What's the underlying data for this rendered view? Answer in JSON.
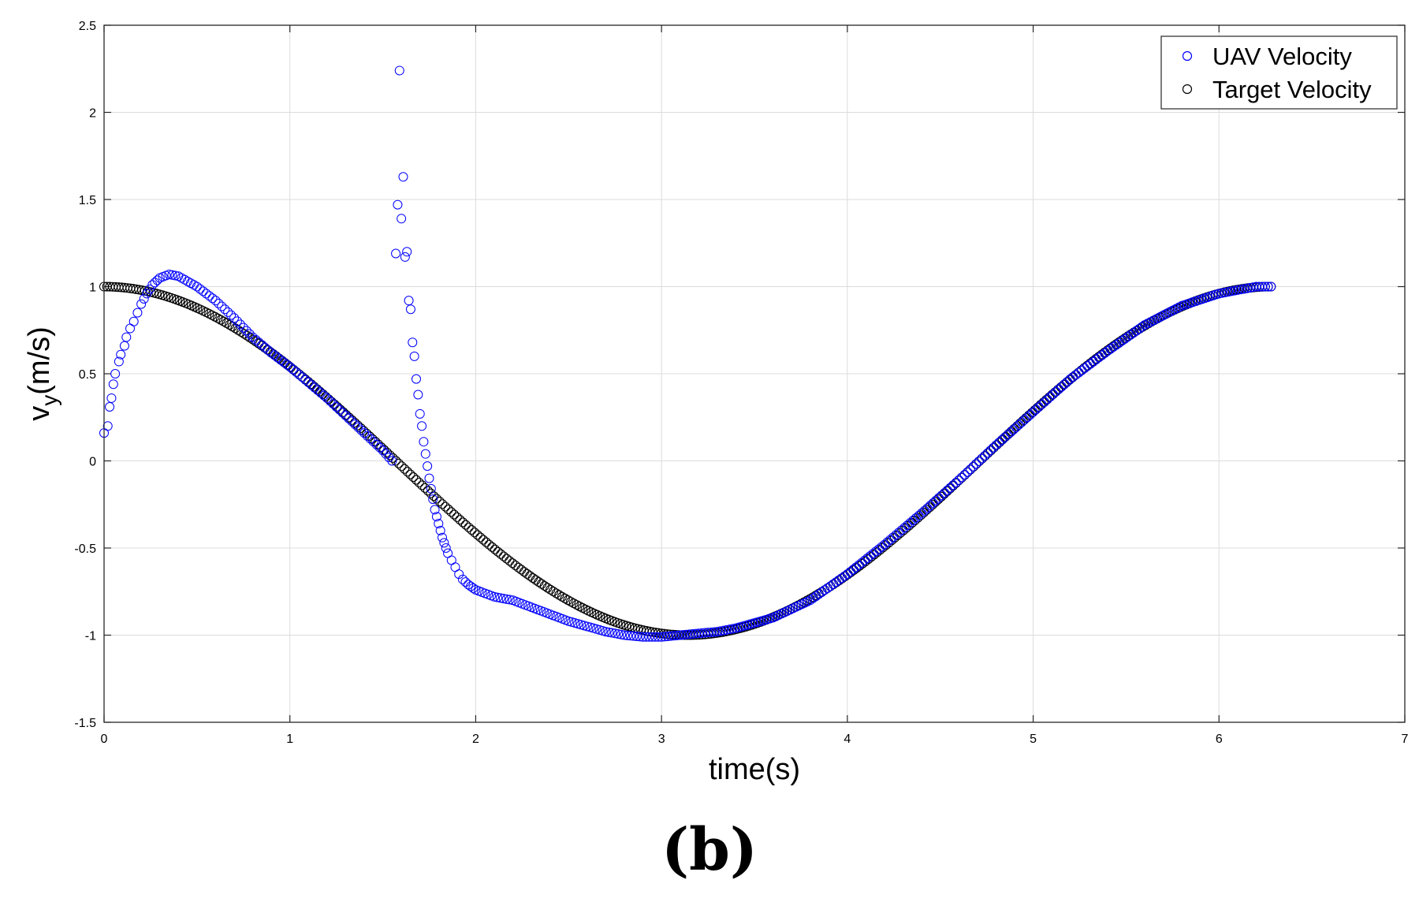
{
  "panel_label": "(b)",
  "chart_data": {
    "type": "scatter",
    "title": "",
    "xlabel": "time(s)",
    "ylabel_main": "v",
    "ylabel_sub": "y",
    "ylabel_tail": "(m/s)",
    "xlim": [
      0,
      7
    ],
    "ylim": [
      -1.5,
      2.5
    ],
    "x_ticks": [
      0,
      1,
      2,
      3,
      4,
      5,
      6,
      7
    ],
    "y_ticks": [
      -1.5,
      -1,
      -0.5,
      0,
      0.5,
      1,
      1.5,
      2,
      2.5
    ],
    "grid": true,
    "legend_position": "top-right",
    "marker": "open-circle",
    "sample_step_s": 0.0157,
    "series": [
      {
        "name": "UAV Velocity",
        "color": "#0000ff",
        "x": [
          0.0,
          0.02,
          0.03,
          0.04,
          0.05,
          0.06,
          0.08,
          0.09,
          0.11,
          0.12,
          0.14,
          0.16,
          0.18,
          0.2,
          0.23,
          0.26,
          0.3,
          0.35,
          0.4,
          0.5,
          0.6,
          0.7,
          0.8,
          0.9,
          1.0,
          1.1,
          1.2,
          1.3,
          1.4,
          1.5,
          1.55,
          1.57,
          1.58,
          1.59,
          1.6,
          1.61,
          1.62,
          1.63,
          1.64,
          1.65,
          1.66,
          1.67,
          1.68,
          1.69,
          1.7,
          1.71,
          1.72,
          1.73,
          1.74,
          1.75,
          1.76,
          1.77,
          1.78,
          1.79,
          1.8,
          1.81,
          1.82,
          1.83,
          1.84,
          1.85,
          1.87,
          1.89,
          1.91,
          1.93,
          1.96,
          2.0,
          2.05,
          2.1,
          2.15,
          2.2,
          2.3,
          2.4,
          2.5,
          2.6,
          2.7,
          2.8,
          2.9,
          3.0,
          3.1,
          3.2,
          3.3,
          3.4,
          3.6,
          3.8,
          4.0,
          4.2,
          4.4,
          4.6,
          4.8,
          5.0,
          5.2,
          5.4,
          5.6,
          5.8,
          6.0,
          6.1,
          6.2,
          6.28
        ],
        "y": [
          0.16,
          0.2,
          0.31,
          0.36,
          0.44,
          0.5,
          0.57,
          0.61,
          0.66,
          0.71,
          0.76,
          0.8,
          0.85,
          0.9,
          0.96,
          1.01,
          1.05,
          1.07,
          1.06,
          1.0,
          0.92,
          0.82,
          0.71,
          0.62,
          0.54,
          0.45,
          0.36,
          0.26,
          0.16,
          0.06,
          0.0,
          1.19,
          1.47,
          2.24,
          1.39,
          1.63,
          1.17,
          1.2,
          0.92,
          0.87,
          0.68,
          0.6,
          0.47,
          0.38,
          0.27,
          0.2,
          0.11,
          0.04,
          -0.03,
          -0.1,
          -0.16,
          -0.22,
          -0.28,
          -0.32,
          -0.36,
          -0.4,
          -0.44,
          -0.47,
          -0.5,
          -0.53,
          -0.57,
          -0.61,
          -0.65,
          -0.68,
          -0.71,
          -0.74,
          -0.76,
          -0.78,
          -0.79,
          -0.8,
          -0.84,
          -0.88,
          -0.92,
          -0.95,
          -0.98,
          -1.0,
          -1.01,
          -1.01,
          -1.0,
          -0.99,
          -0.98,
          -0.96,
          -0.9,
          -0.8,
          -0.65,
          -0.48,
          -0.3,
          -0.11,
          0.09,
          0.28,
          0.47,
          0.63,
          0.78,
          0.89,
          0.96,
          0.98,
          1.0,
          1.0
        ]
      },
      {
        "name": "Target Velocity",
        "color": "#000000",
        "function": "cos",
        "t_start": 0,
        "t_end": 6.2832
      }
    ]
  }
}
